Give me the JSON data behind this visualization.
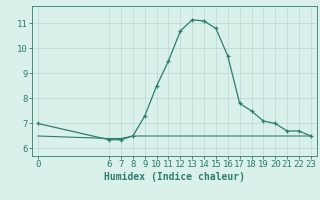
{
  "xlabel": "Humidex (Indice chaleur)",
  "x_data": [
    0,
    6,
    7,
    8,
    9,
    10,
    11,
    12,
    13,
    14,
    15,
    16,
    17,
    18,
    19,
    20,
    21,
    22,
    23
  ],
  "y_main": [
    7.0,
    6.35,
    6.35,
    6.5,
    7.3,
    8.5,
    9.5,
    10.7,
    11.15,
    11.1,
    10.8,
    9.7,
    7.8,
    7.5,
    7.1,
    7.0,
    6.7,
    6.7,
    6.5
  ],
  "y_flat": [
    6.5,
    6.4,
    6.4,
    6.5,
    6.5,
    6.5,
    6.5,
    6.5,
    6.5,
    6.5,
    6.5,
    6.5,
    6.5,
    6.5,
    6.5,
    6.5,
    6.5,
    6.5,
    6.5
  ],
  "ylim": [
    5.7,
    11.7
  ],
  "xlim": [
    -0.5,
    23.5
  ],
  "yticks": [
    6,
    7,
    8,
    9,
    10,
    11
  ],
  "xticks": [
    0,
    6,
    7,
    8,
    9,
    10,
    11,
    12,
    13,
    14,
    15,
    16,
    17,
    18,
    19,
    20,
    21,
    22,
    23
  ],
  "line_color": "#2e7d6e",
  "bg_color": "#daf0eb",
  "grid_color": "#b8d8d2",
  "tick_color": "#2e7d6e",
  "label_color": "#2e7d6e",
  "font_size": 6.5,
  "xlabel_size": 7.0
}
